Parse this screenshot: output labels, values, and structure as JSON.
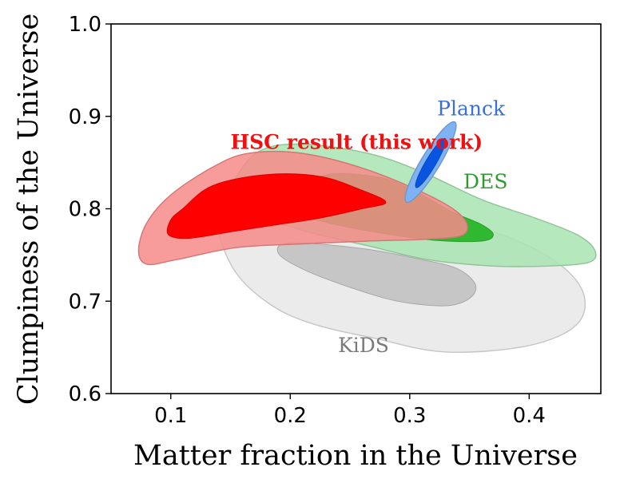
{
  "chart_data": {
    "type": "contour",
    "xlabel": "Matter fraction in the Universe",
    "ylabel": "Clumpiness of the Universe",
    "xlim": [
      0.05,
      0.46
    ],
    "ylim": [
      0.6,
      1.0
    ],
    "x_ticks": [
      "0.1",
      "0.2",
      "0.3",
      "0.4"
    ],
    "y_ticks": [
      "0.6",
      "0.7",
      "0.8",
      "0.9",
      "1.0"
    ],
    "grid": false,
    "series": [
      {
        "name": "KiDS",
        "label_color": "#7a7a7a",
        "inner_color": "#c6c6c6",
        "outer_color": "#e8e8e8",
        "label_pos": [
          0.24,
          0.645
        ],
        "outer": [
          [
            0.16,
            0.805
          ],
          [
            0.23,
            0.805
          ],
          [
            0.31,
            0.79
          ],
          [
            0.37,
            0.775
          ],
          [
            0.42,
            0.745
          ],
          [
            0.445,
            0.71
          ],
          [
            0.44,
            0.675
          ],
          [
            0.4,
            0.652
          ],
          [
            0.33,
            0.645
          ],
          [
            0.27,
            0.66
          ],
          [
            0.22,
            0.675
          ],
          [
            0.185,
            0.695
          ],
          [
            0.155,
            0.73
          ],
          [
            0.14,
            0.775
          ],
          [
            0.145,
            0.8
          ]
        ],
        "inner": [
          [
            0.2,
            0.763
          ],
          [
            0.26,
            0.757
          ],
          [
            0.31,
            0.745
          ],
          [
            0.34,
            0.735
          ],
          [
            0.355,
            0.718
          ],
          [
            0.35,
            0.703
          ],
          [
            0.33,
            0.695
          ],
          [
            0.29,
            0.7
          ],
          [
            0.25,
            0.715
          ],
          [
            0.21,
            0.735
          ],
          [
            0.19,
            0.752
          ]
        ]
      },
      {
        "name": "DES",
        "label_color": "#2f9a2f",
        "inner_color": "#30b830",
        "outer_color": "#a8e4b0",
        "label_pos": [
          0.345,
          0.822
        ],
        "outer": [
          [
            0.155,
            0.835
          ],
          [
            0.175,
            0.863
          ],
          [
            0.21,
            0.87
          ],
          [
            0.265,
            0.86
          ],
          [
            0.31,
            0.84
          ],
          [
            0.36,
            0.81
          ],
          [
            0.405,
            0.79
          ],
          [
            0.44,
            0.772
          ],
          [
            0.455,
            0.755
          ],
          [
            0.45,
            0.742
          ],
          [
            0.415,
            0.738
          ],
          [
            0.37,
            0.738
          ],
          [
            0.315,
            0.745
          ],
          [
            0.265,
            0.76
          ],
          [
            0.215,
            0.775
          ],
          [
            0.17,
            0.795
          ],
          [
            0.152,
            0.815
          ]
        ],
        "inner": [
          [
            0.2,
            0.8
          ],
          [
            0.225,
            0.835
          ],
          [
            0.27,
            0.835
          ],
          [
            0.3,
            0.822
          ],
          [
            0.335,
            0.797
          ],
          [
            0.36,
            0.783
          ],
          [
            0.37,
            0.772
          ],
          [
            0.36,
            0.765
          ],
          [
            0.32,
            0.766
          ],
          [
            0.27,
            0.775
          ],
          [
            0.225,
            0.787
          ]
        ]
      },
      {
        "name": "HSC result (this work)",
        "label_color": "#ee1111",
        "inner_color": "#ff0000",
        "outer_color": "#f78a8a",
        "label_pos": [
          0.15,
          0.865
        ],
        "outer": [
          [
            0.135,
            0.845
          ],
          [
            0.165,
            0.86
          ],
          [
            0.21,
            0.86
          ],
          [
            0.265,
            0.842
          ],
          [
            0.32,
            0.812
          ],
          [
            0.345,
            0.79
          ],
          [
            0.345,
            0.772
          ],
          [
            0.315,
            0.767
          ],
          [
            0.265,
            0.765
          ],
          [
            0.21,
            0.762
          ],
          [
            0.155,
            0.758
          ],
          [
            0.105,
            0.745
          ],
          [
            0.08,
            0.74
          ],
          [
            0.073,
            0.755
          ],
          [
            0.08,
            0.785
          ],
          [
            0.1,
            0.815
          ]
        ],
        "inner": [
          [
            0.11,
            0.8
          ],
          [
            0.135,
            0.825
          ],
          [
            0.18,
            0.837
          ],
          [
            0.225,
            0.835
          ],
          [
            0.26,
            0.82
          ],
          [
            0.28,
            0.807
          ],
          [
            0.26,
            0.8
          ],
          [
            0.225,
            0.79
          ],
          [
            0.19,
            0.783
          ],
          [
            0.15,
            0.775
          ],
          [
            0.115,
            0.768
          ],
          [
            0.098,
            0.772
          ],
          [
            0.1,
            0.788
          ]
        ]
      },
      {
        "name": "Planck",
        "label_color": "#3a6fd8",
        "inner_color": "#0a55e0",
        "outer_color": "#7fb2f2",
        "label_pos": [
          0.323,
          0.901
        ],
        "ellipse": {
          "outer": {
            "cx": 0.3175,
            "cy": 0.8505,
            "rx_axis": [
              0.02,
              0.0435
            ],
            "ry_axis": [
              -0.0075,
              0.0035
            ]
          },
          "inner": {
            "cx": 0.3175,
            "cy": 0.8495,
            "rx_axis": [
              0.012,
              0.0265
            ],
            "ry_axis": [
              -0.004,
              0.002
            ]
          }
        }
      }
    ]
  }
}
